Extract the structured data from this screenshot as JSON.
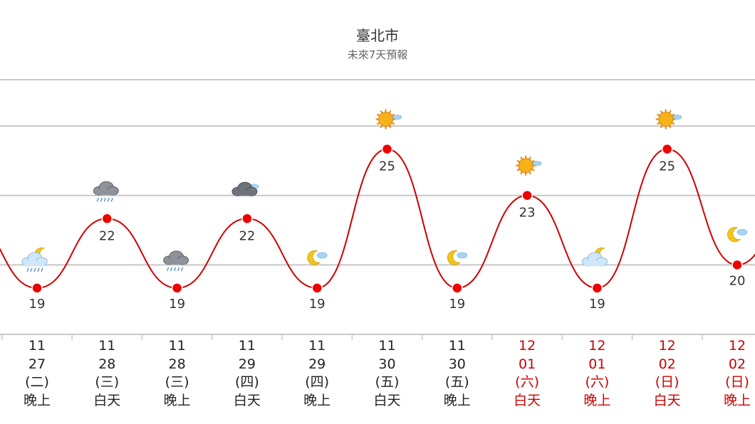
{
  "chart_data": {
    "type": "line",
    "title": "臺北市",
    "subtitle": "未來7天預報",
    "ylim": [
      17,
      28
    ],
    "gridlines": [
      20,
      23,
      26
    ],
    "grid": true,
    "colors": {
      "line": "#cc0000",
      "marker": "#ee0000",
      "grid": "#c8c8c8"
    },
    "x": [
      {
        "month": "11",
        "day": "27",
        "weekday": "(二)",
        "period": "晚上",
        "weekend": false
      },
      {
        "month": "11",
        "day": "28",
        "weekday": "(三)",
        "period": "白天",
        "weekend": false
      },
      {
        "month": "11",
        "day": "28",
        "weekday": "(三)",
        "period": "晚上",
        "weekend": false
      },
      {
        "month": "11",
        "day": "29",
        "weekday": "(四)",
        "period": "白天",
        "weekend": false
      },
      {
        "month": "11",
        "day": "29",
        "weekday": "(四)",
        "period": "晚上",
        "weekend": false
      },
      {
        "month": "11",
        "day": "30",
        "weekday": "(五)",
        "period": "白天",
        "weekend": false
      },
      {
        "month": "11",
        "day": "30",
        "weekday": "(五)",
        "period": "晚上",
        "weekend": false
      },
      {
        "month": "12",
        "day": "01",
        "weekday": "(六)",
        "period": "白天",
        "weekend": true
      },
      {
        "month": "12",
        "day": "01",
        "weekday": "(六)",
        "period": "晚上",
        "weekend": true
      },
      {
        "month": "12",
        "day": "02",
        "weekday": "(日)",
        "period": "白天",
        "weekend": true
      },
      {
        "month": "12",
        "day": "02",
        "weekday": "(日)",
        "period": "晚上",
        "weekend": true
      }
    ],
    "series": [
      {
        "values": [
          19,
          22,
          19,
          22,
          19,
          25,
          19,
          23,
          19,
          25,
          20
        ],
        "value_labels": [
          "19",
          "22",
          "19",
          "22",
          "19",
          "25",
          "19",
          "23",
          "19",
          "25",
          "20"
        ],
        "icons": [
          "cloudy-rain-night-icon",
          "rain-cloud-icon",
          "rain-cloud-icon",
          "dark-cloud-icon",
          "moon-cloud-icon",
          "sun-icon",
          "moon-cloud-icon",
          "sun-icon",
          "cloudy-night-icon",
          "sun-icon",
          "moon-cloud-icon"
        ]
      }
    ]
  }
}
